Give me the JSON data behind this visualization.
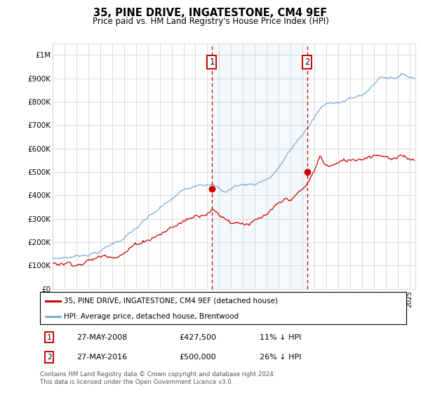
{
  "title": "35, PINE DRIVE, INGATESTONE, CM4 9EF",
  "subtitle": "Price paid vs. HM Land Registry's House Price Index (HPI)",
  "ylabel_ticks": [
    "£0",
    "£100K",
    "£200K",
    "£300K",
    "£400K",
    "£500K",
    "£600K",
    "£700K",
    "£800K",
    "£900K",
    "£1M"
  ],
  "ytick_values": [
    0,
    100000,
    200000,
    300000,
    400000,
    500000,
    600000,
    700000,
    800000,
    900000,
    1000000
  ],
  "ylim": [
    0,
    1050000
  ],
  "xlim_start": 1995.0,
  "xlim_end": 2025.5,
  "transaction1_date": 2008.38,
  "transaction1_price": 427500,
  "transaction2_date": 2016.38,
  "transaction2_price": 500000,
  "red_line_color": "#cc0000",
  "blue_line_color": "#7aaadd",
  "blue_fill_alpha": 0.18,
  "blue_fill_color": "#c8ddf0",
  "grid_color": "#cccccc",
  "background_color": "#ffffff",
  "legend_label_red": "35, PINE DRIVE, INGATESTONE, CM4 9EF (detached house)",
  "legend_label_blue": "HPI: Average price, detached house, Brentwood",
  "footnote": "Contains HM Land Registry data © Crown copyright and database right 2024.\nThis data is licensed under the Open Government Licence v3.0.",
  "box_color": "#cc0000"
}
